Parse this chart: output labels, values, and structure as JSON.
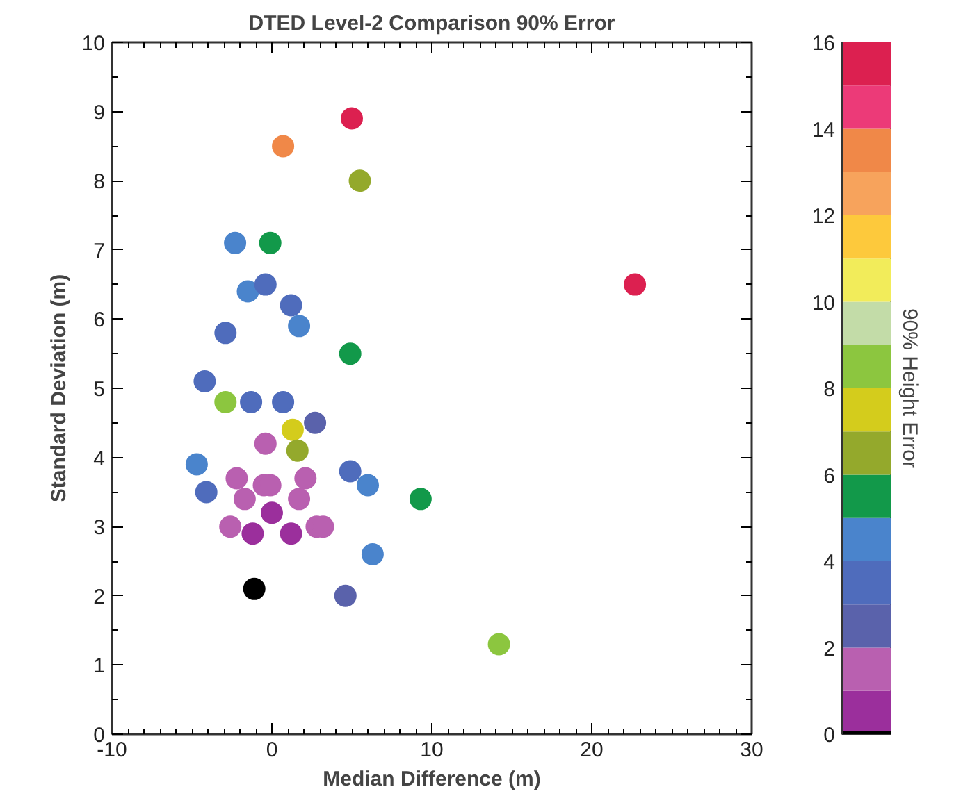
{
  "chart_data": {
    "type": "scatter",
    "title": "DTED Level-2 Comparison 90% Error",
    "xlabel": "Median Difference (m)",
    "ylabel": "Standard Deviation (m)",
    "clabel": "90% Height Error",
    "xlim": [
      -10,
      30
    ],
    "xticks": [
      -10,
      0,
      10,
      20,
      30
    ],
    "ylim": [
      0,
      10
    ],
    "yticks": [
      0,
      1,
      2,
      3,
      4,
      5,
      6,
      7,
      8,
      9,
      10
    ],
    "clim": [
      0,
      16
    ],
    "cticks": [
      0,
      2,
      4,
      6,
      8,
      10,
      12,
      14,
      16
    ],
    "marker": "circle",
    "grid": false,
    "x": [
      5.0,
      0.7,
      5.5,
      -2.3,
      -0.1,
      -1.5,
      -0.4,
      1.2,
      1.7,
      -2.9,
      22.7,
      4.9,
      -4.2,
      -2.9,
      -1.3,
      0.7,
      2.7,
      1.3,
      -0.4,
      1.6,
      -4.7,
      -2.2,
      -0.5,
      -0.1,
      2.1,
      4.9,
      6.0,
      9.3,
      -4.1,
      -1.7,
      0.0,
      1.7,
      -2.6,
      -1.2,
      1.2,
      2.8,
      3.2,
      6.3,
      -1.1,
      4.6,
      14.2
    ],
    "values": [
      8.9,
      8.5,
      8.0,
      7.1,
      7.1,
      6.4,
      6.5,
      6.2,
      5.9,
      5.8,
      6.5,
      5.5,
      5.1,
      4.8,
      4.8,
      4.8,
      4.5,
      4.4,
      4.2,
      4.1,
      3.9,
      3.7,
      3.6,
      3.6,
      3.7,
      3.8,
      3.6,
      3.4,
      3.5,
      3.4,
      3.2,
      3.4,
      3.0,
      2.9,
      2.9,
      3.0,
      3.0,
      2.6,
      2.1,
      2.0,
      1.3
    ],
    "cvalues": [
      15.5,
      13.5,
      6.5,
      4.5,
      5.5,
      4.5,
      3.5,
      3.5,
      4.5,
      3.5,
      15.5,
      5.5,
      3.5,
      8.5,
      3.5,
      3.5,
      2.5,
      7.5,
      1.5,
      6.5,
      4.5,
      1.5,
      1.5,
      1.5,
      1.5,
      3.5,
      4.5,
      5.5,
      3.5,
      1.5,
      0.5,
      1.5,
      1.5,
      0.5,
      0.5,
      1.5,
      1.5,
      4.5,
      0,
      2.5,
      8.5
    ]
  }
}
